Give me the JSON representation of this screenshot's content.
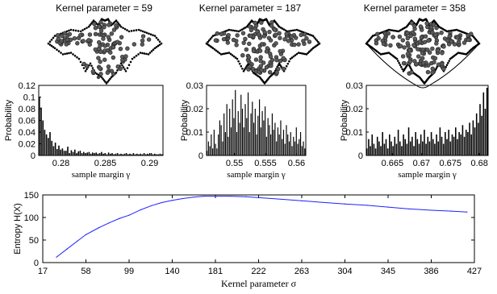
{
  "chart_data": [
    {
      "type": "scatter",
      "title": "Kernel parameter = 59",
      "description_only": false,
      "shape": "bat-like point cloud with boundary support vectors"
    },
    {
      "type": "scatter",
      "title": "Kernel parameter = 187",
      "shape": "bat-like point cloud with boundary support vectors"
    },
    {
      "type": "scatter",
      "title": "Kernel parameter = 358",
      "shape": "bat-like point cloud with boundary support vectors"
    },
    {
      "type": "bar",
      "title": "",
      "xlabel": "sample margin γ",
      "ylabel": "Probability",
      "xlim": [
        0.2775,
        0.2915
      ],
      "ylim": [
        0,
        0.12
      ],
      "xticks": [
        "0.28",
        "0.285",
        "0.29"
      ],
      "xtick_values": [
        0.28,
        0.285,
        0.29
      ],
      "yticks": [
        "0",
        "0.02",
        "0.04",
        "0.06",
        "0.08",
        "0.1",
        "0.12"
      ],
      "ytick_values": [
        0,
        0.02,
        0.04,
        0.06,
        0.08,
        0.1,
        0.12
      ],
      "values": [
        0.1,
        0.082,
        0.06,
        0.044,
        0.036,
        0.03,
        0.04,
        0.025,
        0.016,
        0.022,
        0.011,
        0.017,
        0.01,
        0.012,
        0.008,
        0.008,
        0.015,
        0.004,
        0.009,
        0.006,
        0.01,
        0.004,
        0.007,
        0.008,
        0.004,
        0.006,
        0.004,
        0.005,
        0.006,
        0.003,
        0.005,
        0.004,
        0.005,
        0.003,
        0.004,
        0.006,
        0.003,
        0.004,
        0.002,
        0.005,
        0.003,
        0.004,
        0.002,
        0.003,
        0.004,
        0.002,
        0.003,
        0.002,
        0.003,
        0.004,
        0.002,
        0.003,
        0.002,
        0.004,
        0.002,
        0.003,
        0.002,
        0.003,
        0.002,
        0.004,
        0.002,
        0.003,
        0.002,
        0.004,
        0.002,
        0.003,
        0.002,
        0.002,
        0.003,
        0.002
      ]
    },
    {
      "type": "bar",
      "title": "",
      "xlabel": "sample margin γ",
      "ylabel": "Probability",
      "xlim": [
        0.5455,
        0.5615
      ],
      "ylim": [
        0,
        0.03
      ],
      "xticks": [
        "0.55",
        "0.555",
        "0.56"
      ],
      "xtick_values": [
        0.55,
        0.555,
        0.56
      ],
      "yticks": [
        "0",
        "0.01",
        "0.02",
        "0.03"
      ],
      "ytick_values": [
        0,
        0.01,
        0.02,
        0.03
      ],
      "values": [
        0.002,
        0.006,
        0.004,
        0.009,
        0.003,
        0.011,
        0.005,
        0.003,
        0.009,
        0.015,
        0.013,
        0.006,
        0.018,
        0.01,
        0.022,
        0.008,
        0.02,
        0.012,
        0.024,
        0.016,
        0.028,
        0.01,
        0.019,
        0.014,
        0.026,
        0.02,
        0.012,
        0.022,
        0.016,
        0.027,
        0.01,
        0.018,
        0.023,
        0.014,
        0.02,
        0.009,
        0.017,
        0.024,
        0.012,
        0.019,
        0.015,
        0.021,
        0.008,
        0.016,
        0.013,
        0.009,
        0.018,
        0.011,
        0.014,
        0.006,
        0.012,
        0.009,
        0.015,
        0.007,
        0.011,
        0.005,
        0.013,
        0.009,
        0.006,
        0.01,
        0.004,
        0.008,
        0.006,
        0.012,
        0.005,
        0.007,
        0.01,
        0.004,
        0.006,
        0.003
      ]
    },
    {
      "type": "bar",
      "title": "",
      "xlabel": "sample margin γ",
      "ylabel": "Probability",
      "xlim": [
        0.6605,
        0.6815
      ],
      "ylim": [
        0,
        0.03
      ],
      "xticks": [
        "0.665",
        "0.67",
        "0.675",
        "0.68"
      ],
      "xtick_values": [
        0.665,
        0.67,
        0.675,
        0.68
      ],
      "yticks": [
        "0",
        "0.01",
        "0.02",
        "0.03"
      ],
      "ytick_values": [
        0,
        0.01,
        0.02,
        0.03
      ],
      "values": [
        0.003,
        0.007,
        0.004,
        0.009,
        0.005,
        0.003,
        0.008,
        0.006,
        0.004,
        0.01,
        0.005,
        0.007,
        0.003,
        0.009,
        0.006,
        0.004,
        0.008,
        0.005,
        0.011,
        0.006,
        0.004,
        0.009,
        0.007,
        0.005,
        0.012,
        0.006,
        0.008,
        0.004,
        0.01,
        0.007,
        0.005,
        0.009,
        0.006,
        0.011,
        0.005,
        0.008,
        0.006,
        0.01,
        0.007,
        0.005,
        0.009,
        0.006,
        0.012,
        0.008,
        0.005,
        0.01,
        0.007,
        0.011,
        0.006,
        0.009,
        0.008,
        0.012,
        0.007,
        0.01,
        0.009,
        0.013,
        0.008,
        0.011,
        0.01,
        0.014,
        0.009,
        0.015,
        0.012,
        0.018,
        0.014,
        0.022,
        0.017,
        0.027,
        0.02,
        0.029
      ]
    },
    {
      "type": "line",
      "title": "",
      "xlabel": "Kernel parameter σ",
      "ylabel": "Entropy H(X)",
      "xlim": [
        17,
        427
      ],
      "ylim": [
        0,
        150
      ],
      "xticks": [
        "17",
        "58",
        "99",
        "140",
        "181",
        "222",
        "263",
        "304",
        "345",
        "386",
        "427"
      ],
      "xtick_values": [
        17,
        58,
        99,
        140,
        181,
        222,
        263,
        304,
        345,
        386,
        427
      ],
      "yticks": [
        "0",
        "50",
        "100",
        "150"
      ],
      "ytick_values": [
        0,
        50,
        100,
        150
      ],
      "series": [
        {
          "color": "#2020ff",
          "x": [
            30,
            40,
            50,
            58,
            70,
            80,
            90,
            99,
            110,
            120,
            130,
            140,
            150,
            160,
            170,
            181,
            195,
            210,
            222,
            240,
            263,
            280,
            304,
            325,
            345,
            365,
            386,
            405,
            420
          ],
          "y": [
            12,
            30,
            48,
            62,
            77,
            88,
            98,
            105,
            117,
            126,
            133,
            138,
            142,
            145,
            147,
            147,
            147,
            146,
            144,
            141,
            137,
            134,
            130,
            127,
            123,
            119,
            116,
            114,
            112
          ]
        }
      ]
    }
  ]
}
